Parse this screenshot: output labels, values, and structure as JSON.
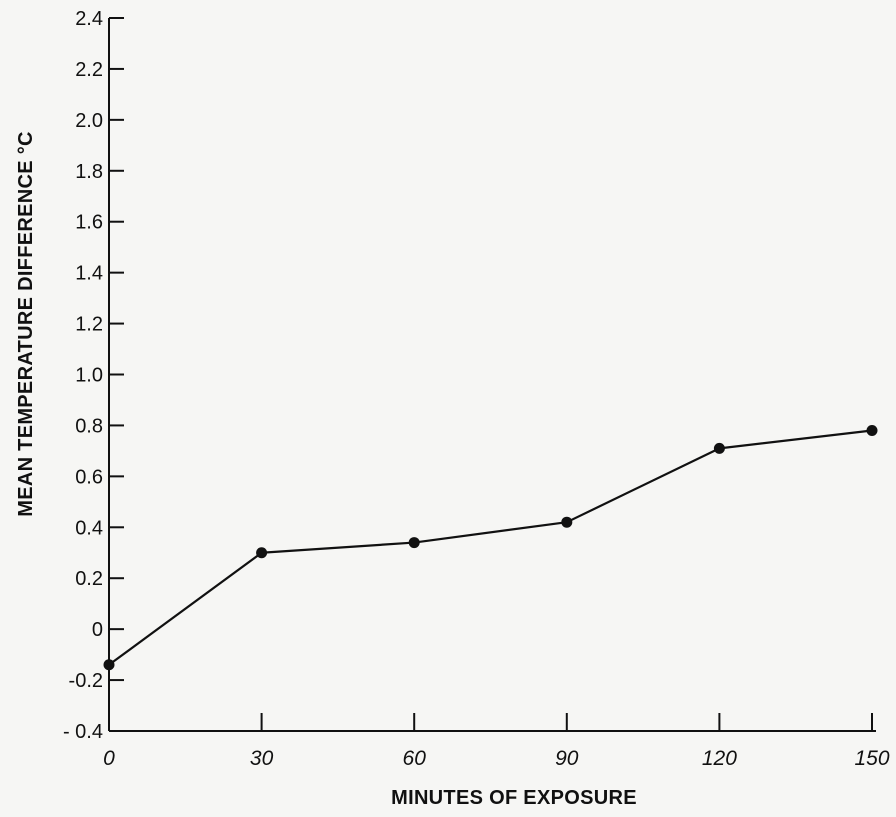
{
  "chart_data": {
    "type": "line",
    "title": "",
    "xlabel": "MINUTES OF EXPOSURE",
    "ylabel": "MEAN TEMPERATURE DIFFERENCE °C",
    "xlim": [
      0,
      150
    ],
    "ylim": [
      -0.4,
      2.4
    ],
    "x_ticks": [
      0,
      30,
      60,
      90,
      120,
      150
    ],
    "x_tick_labels": [
      "0",
      "30",
      "60",
      "90",
      "120",
      "150"
    ],
    "y_ticks": [
      -0.4,
      -0.2,
      0,
      0.2,
      0.4,
      0.6,
      0.8,
      1.0,
      1.2,
      1.4,
      1.6,
      1.8,
      2.0,
      2.2,
      2.4
    ],
    "y_tick_labels": [
      "- 0.4",
      "-0.2",
      "0",
      "0.2",
      "0.4",
      "0.6",
      "0.8",
      "1.0",
      "1.2",
      "1.4",
      "1.6",
      "1.8",
      "2.0",
      "2.2",
      "2.4"
    ],
    "grid": false,
    "legend": "none",
    "series": [
      {
        "x": [
          0,
          30,
          60,
          90,
          120,
          150
        ],
        "y": [
          -0.14,
          0.3,
          0.34,
          0.42,
          0.71,
          0.78
        ]
      }
    ],
    "colors": {
      "line": "#111111",
      "marker": "#111111",
      "axis": "#111111"
    }
  }
}
